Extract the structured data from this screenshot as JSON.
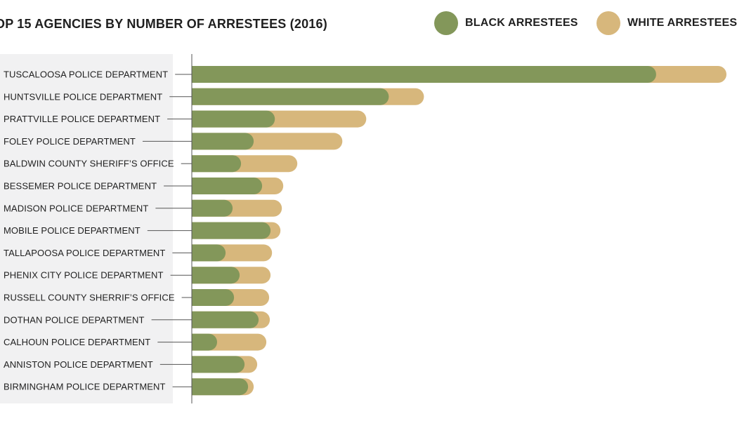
{
  "colors": {
    "black": "#83975a",
    "white": "#d7b77c",
    "label_panel": "#f1f1f2",
    "axis": "#555555"
  },
  "chart_data": {
    "type": "bar",
    "orientation": "horizontal",
    "stacked": true,
    "title": "OP 15 AGENCIES BY NUMBER OF ARRESTEES (2016)",
    "legend": {
      "position": "top-right",
      "items": [
        {
          "name": "BLACK ARRESTEES",
          "color": "#83975a"
        },
        {
          "name": "WHITE ARRESTEES",
          "color": "#d7b77c"
        }
      ]
    },
    "categories": [
      "TUSCALOOSA POLICE DEPARTMENT",
      "HUNTSVILLE POLICE DEPARTMENT",
      "PRATTVILLE POLICE DEPARTMENT",
      "FOLEY POLICE DEPARTMENT",
      "BALDWIN COUNTY SHERIFF’S OFFICE",
      "BESSEMER POLICE DEPARTMENT",
      "MADISON POLICE DEPARTMENT",
      "MOBILE POLICE DEPARTMENT",
      "TALLAPOOSA POLICE DEPARTMENT",
      "PHENIX CITY POLICE DEPARTMENT",
      "RUSSELL COUNTY SHERRIF’S OFFICE",
      "DOTHAN POLICE DEPARTMENT",
      "CALHOUN POLICE DEPARTMENT",
      "ANNISTON POLICE DEPARTMENT",
      "BIRMINGHAM POLICE DEPARTMENT"
    ],
    "series": [
      {
        "name": "BLACK ARRESTEES",
        "values": [
          660,
          280,
          118,
          88,
          70,
          100,
          58,
          112,
          48,
          68,
          60,
          95,
          36,
          75,
          80
        ]
      },
      {
        "name": "WHITE ARRESTEES",
        "values": [
          100,
          50,
          130,
          126,
          80,
          30,
          70,
          14,
          66,
          44,
          50,
          16,
          70,
          18,
          8
        ]
      }
    ],
    "xlim": [
      0,
      750
    ],
    "grid": false
  }
}
